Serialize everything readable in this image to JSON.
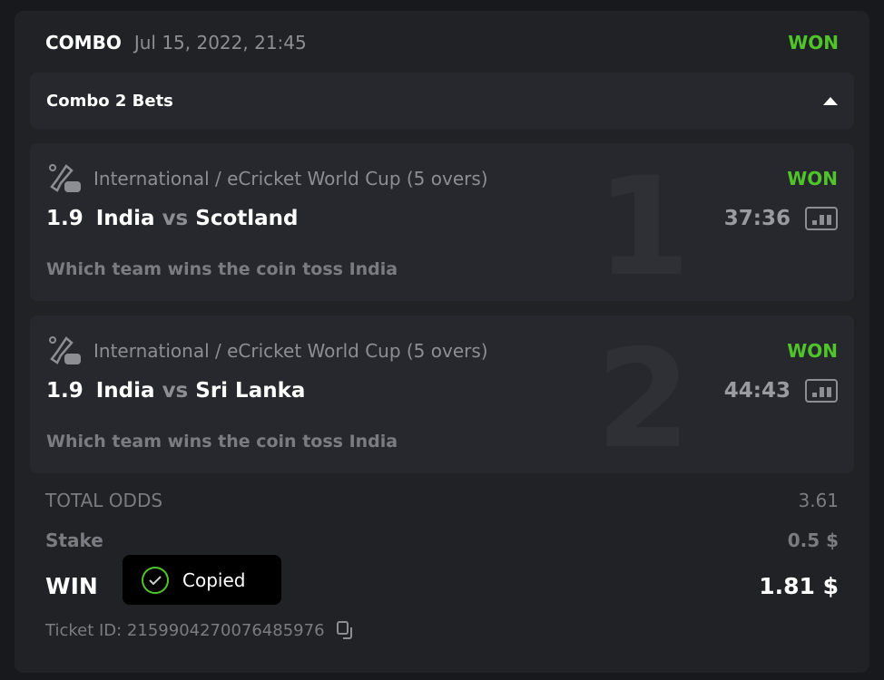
{
  "header": {
    "type": "COMBO",
    "date": "Jul 15, 2022, 21:45",
    "status": "WON"
  },
  "combo": {
    "label": "Combo 2 Bets"
  },
  "bets": [
    {
      "index": "1",
      "league": "International / eCricket World Cup (5 overs)",
      "status": "WON",
      "odds": "1.9",
      "home": "India",
      "vs": "vs",
      "away": "Scotland",
      "time": "37:36",
      "market": "Which team wins the coin toss India"
    },
    {
      "index": "2",
      "league": "International / eCricket World Cup (5 overs)",
      "status": "WON",
      "odds": "1.9",
      "home": "India",
      "vs": "vs",
      "away": "Sri Lanka",
      "time": "44:43",
      "market": "Which team wins the coin toss India"
    }
  ],
  "summary": {
    "total_odds_label": "TOTAL ODDS",
    "total_odds": "3.61",
    "stake_label": "Stake",
    "stake": "0.5 $",
    "win_label": "WIN",
    "win": "1.81 $",
    "ticket_label": "Ticket ID: 2159904270076485976"
  },
  "toast": {
    "text": "Copied"
  },
  "colors": {
    "won": "#4fc52a",
    "background": "#212226"
  }
}
